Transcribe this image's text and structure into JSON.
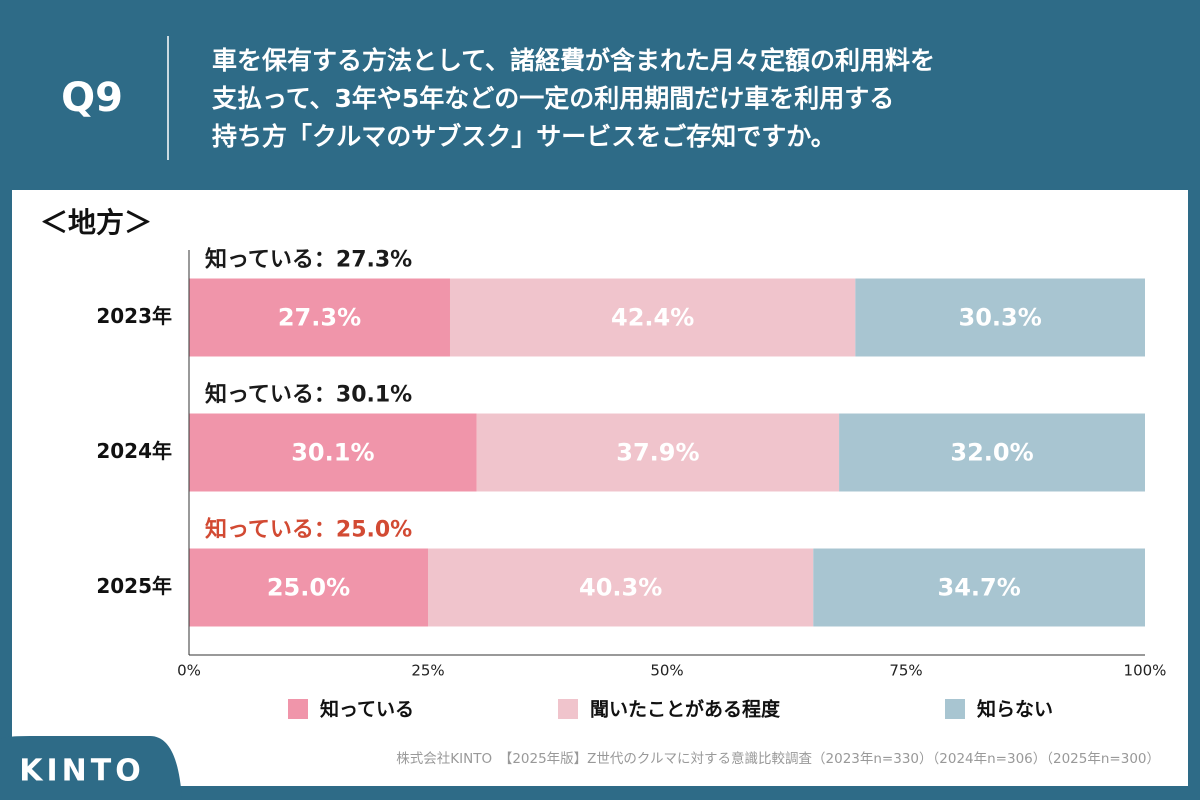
{
  "header": {
    "question": "Q9",
    "title_lines": [
      "車を保有する方法として、諸経費が含まれた月々定額の利用料を",
      "支払って、3年や5年などの一定の利用期間だけ車を利用する",
      "持ち方「クルマのサブスク」サービスをご存知ですか。"
    ]
  },
  "footer": {
    "logo": "KINTO",
    "source": "株式会社KINTO　【2025年版】Z世代のクルマに対する意識比較調査（2023年n=330）（2024年n=306）（2025年n=300）"
  },
  "chart_data": {
    "type": "bar",
    "orientation": "horizontal",
    "stacked": true,
    "subtitle": "＜地方＞",
    "categories": [
      "2023年",
      "2024年",
      "2025年"
    ],
    "series": [
      {
        "name": "知っている",
        "color": "#f095aa",
        "values": [
          27.3,
          30.1,
          25.0
        ],
        "value_labels": [
          "27.3%",
          "30.1%",
          "25.0%"
        ]
      },
      {
        "name": "聞いたことがある程度",
        "color": "#f0c4cc",
        "values": [
          42.4,
          37.9,
          40.3
        ],
        "value_labels": [
          "42.4%",
          "37.9%",
          "40.3%"
        ]
      },
      {
        "name": "知らない",
        "color": "#a8c5d1",
        "values": [
          30.3,
          32.0,
          34.7
        ],
        "value_labels": [
          "30.3%",
          "32.0%",
          "34.7%"
        ]
      }
    ],
    "annotations": [
      {
        "text": "知っている：27.3%",
        "color": "#1a1a1a"
      },
      {
        "text": "知っている：30.1%",
        "color": "#1a1a1a"
      },
      {
        "text": "知っている：25.0%",
        "color": "#d24a33"
      }
    ],
    "xlim": [
      0,
      100
    ],
    "xticks": [
      {
        "value": 0,
        "label": "0%"
      },
      {
        "value": 25,
        "label": "25%"
      },
      {
        "value": 50,
        "label": "50%"
      },
      {
        "value": 75,
        "label": "75%"
      },
      {
        "value": 100,
        "label": "100%"
      }
    ],
    "legend": "bottom"
  }
}
